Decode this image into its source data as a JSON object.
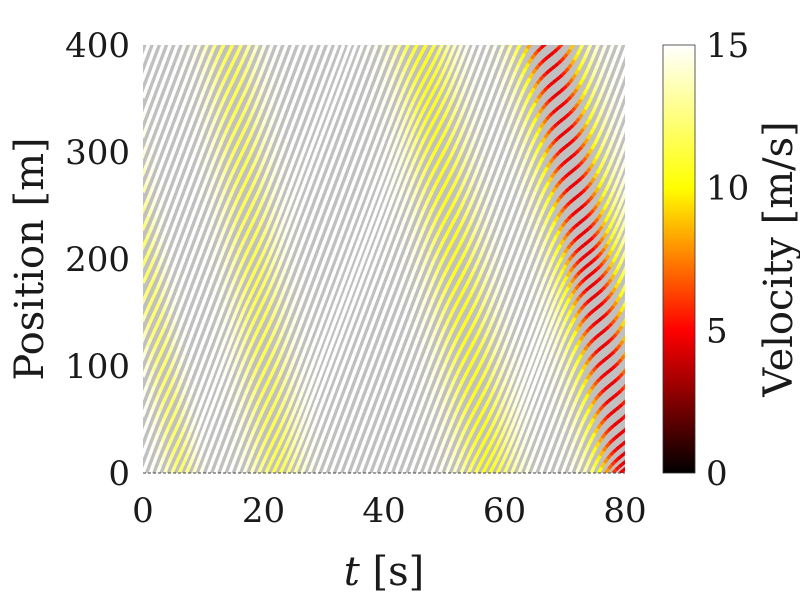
{
  "chart_data": {
    "type": "heatmap",
    "subtype": "trajectory-heatmap",
    "xlabel_var": "t",
    "xlabel_unit": "[s]",
    "ylabel": "Position [m]",
    "colorbar_label": "Velocity [m/s]",
    "xlim": [
      0,
      80
    ],
    "ylim": [
      0,
      400
    ],
    "clim": [
      0,
      15
    ],
    "xticks": [
      0,
      20,
      40,
      60,
      80
    ],
    "yticks": [
      0,
      100,
      200,
      300,
      400
    ],
    "cticks": [
      0,
      5,
      10,
      15
    ],
    "colormap": "hot",
    "background_color": "#c0c0c0",
    "free_flow_velocity": 15,
    "vehicle_spacing_s": 1.2,
    "congestion_bands": [
      {
        "x_at_y400": 14,
        "x_at_y0": 22,
        "min_velocity": 11.5
      },
      {
        "x_at_y400": 46,
        "x_at_y0": 57,
        "min_velocity": 10.5
      },
      {
        "x_at_y400": 67,
        "x_at_y0": 80,
        "min_velocity": 4.5
      }
    ],
    "band_from_origin": {
      "x_at_y200": 0,
      "x_at_y0": 6,
      "min_velocity": 12
    }
  }
}
